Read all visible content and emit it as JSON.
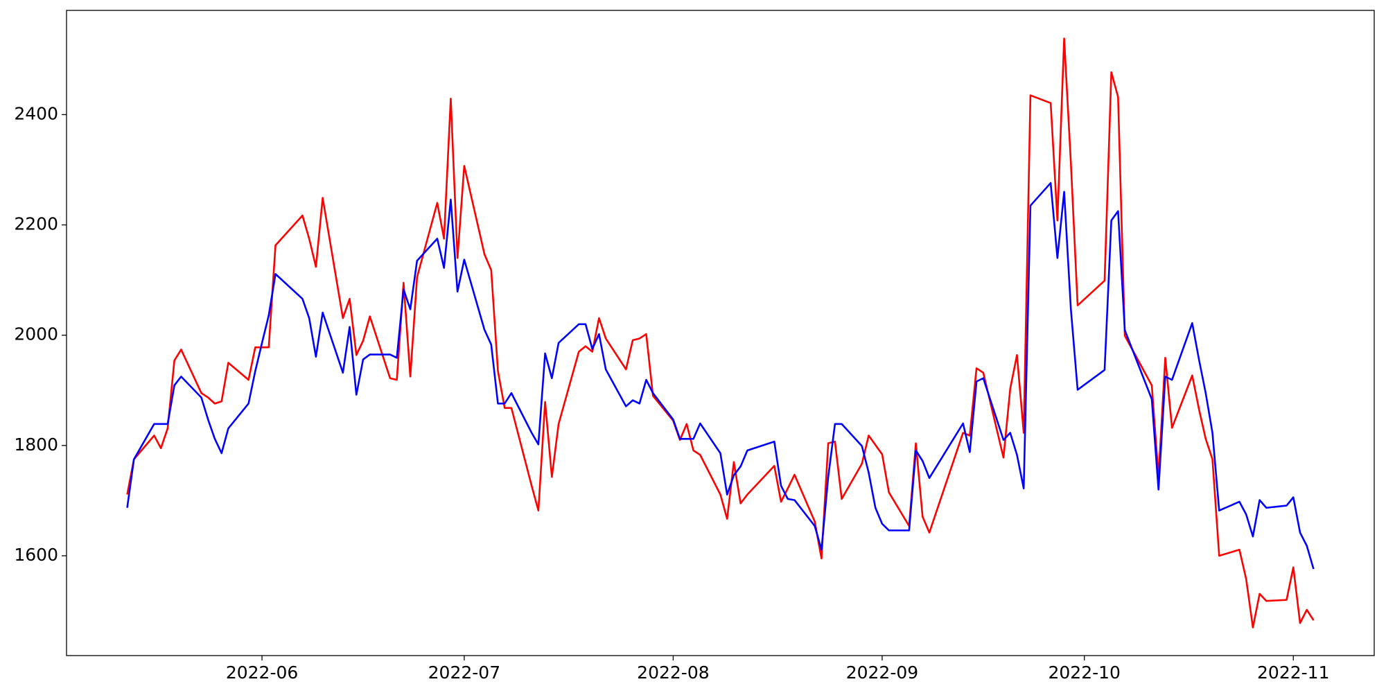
{
  "chart_data": {
    "type": "line",
    "x": [
      "2022-05-12",
      "2022-05-13",
      "2022-05-16",
      "2022-05-17",
      "2022-05-18",
      "2022-05-19",
      "2022-05-20",
      "2022-05-23",
      "2022-05-24",
      "2022-05-25",
      "2022-05-26",
      "2022-05-27",
      "2022-05-30",
      "2022-05-31",
      "2022-06-01",
      "2022-06-02",
      "2022-06-03",
      "2022-06-07",
      "2022-06-08",
      "2022-06-09",
      "2022-06-10",
      "2022-06-13",
      "2022-06-14",
      "2022-06-15",
      "2022-06-16",
      "2022-06-17",
      "2022-06-20",
      "2022-06-21",
      "2022-06-22",
      "2022-06-23",
      "2022-06-24",
      "2022-06-27",
      "2022-06-28",
      "2022-06-29",
      "2022-06-30",
      "2022-07-01",
      "2022-07-04",
      "2022-07-05",
      "2022-07-06",
      "2022-07-07",
      "2022-07-08",
      "2022-07-11",
      "2022-07-12",
      "2022-07-13",
      "2022-07-14",
      "2022-07-15",
      "2022-07-18",
      "2022-07-19",
      "2022-07-20",
      "2022-07-21",
      "2022-07-22",
      "2022-07-25",
      "2022-07-26",
      "2022-07-27",
      "2022-07-28",
      "2022-07-29",
      "2022-08-01",
      "2022-08-02",
      "2022-08-03",
      "2022-08-04",
      "2022-08-05",
      "2022-08-08",
      "2022-08-09",
      "2022-08-10",
      "2022-08-11",
      "2022-08-12",
      "2022-08-16",
      "2022-08-17",
      "2022-08-18",
      "2022-08-19",
      "2022-08-22",
      "2022-08-23",
      "2022-08-24",
      "2022-08-25",
      "2022-08-26",
      "2022-08-29",
      "2022-08-30",
      "2022-08-31",
      "2022-09-01",
      "2022-09-02",
      "2022-09-05",
      "2022-09-06",
      "2022-09-07",
      "2022-09-08",
      "2022-09-13",
      "2022-09-14",
      "2022-09-15",
      "2022-09-16",
      "2022-09-19",
      "2022-09-20",
      "2022-09-21",
      "2022-09-22",
      "2022-09-23",
      "2022-09-26",
      "2022-09-27",
      "2022-09-28",
      "2022-09-29",
      "2022-09-30",
      "2022-10-04",
      "2022-10-05",
      "2022-10-06",
      "2022-10-07",
      "2022-10-11",
      "2022-10-12",
      "2022-10-13",
      "2022-10-14",
      "2022-10-17",
      "2022-10-18",
      "2022-10-19",
      "2022-10-20",
      "2022-10-21",
      "2022-10-24",
      "2022-10-25",
      "2022-10-26",
      "2022-10-27",
      "2022-10-28",
      "2022-10-31",
      "2022-11-01",
      "2022-11-02",
      "2022-11-03",
      "2022-11-04"
    ],
    "series": [
      {
        "color": "#ff0000",
        "values": [
          1711,
          1775,
          1818,
          1795,
          1831,
          1954,
          1974,
          1895,
          1887,
          1876,
          1880,
          1950,
          1919,
          1978,
          1978,
          1978,
          2163,
          2217,
          2175,
          2124,
          2249,
          2031,
          2066,
          1964,
          1990,
          2034,
          1922,
          1919,
          2095,
          1925,
          2105,
          2240,
          2175,
          2429,
          2140,
          2307,
          2147,
          2118,
          1935,
          1868,
          1868,
          1727,
          1682,
          1879,
          1743,
          1839,
          1970,
          1980,
          1970,
          2031,
          1994,
          1938,
          1991,
          1994,
          2002,
          1890,
          1845,
          1810,
          1839,
          1791,
          1783,
          1711,
          1667,
          1770,
          1695,
          1711,
          1763,
          1698,
          1722,
          1747,
          1662,
          1595,
          1804,
          1807,
          1703,
          1767,
          1818,
          1801,
          1784,
          1715,
          1654,
          1804,
          1671,
          1642,
          1823,
          1818,
          1940,
          1932,
          1778,
          1903,
          1964,
          1823,
          2435,
          2421,
          2208,
          2538,
          2312,
          2054,
          2099,
          2477,
          2432,
          1999,
          1909,
          1743,
          1959,
          1832,
          1927,
          1866,
          1812,
          1775,
          1600,
          1611,
          1558,
          1470,
          1531,
          1518,
          1520,
          1579,
          1478,
          1502,
          1483
        ]
      },
      {
        "color": "#0000ff",
        "values": [
          1687,
          1775,
          1839,
          1839,
          1839,
          1909,
          1925,
          1887,
          1847,
          1812,
          1786,
          1831,
          1876,
          1935,
          1986,
          2036,
          2111,
          2066,
          2031,
          1961,
          2041,
          1932,
          2015,
          1892,
          1956,
          1965,
          1965,
          1959,
          2083,
          2047,
          2135,
          2175,
          2122,
          2246,
          2079,
          2137,
          2010,
          1983,
          1876,
          1876,
          1895,
          1823,
          1802,
          1967,
          1922,
          1986,
          2020,
          2020,
          1975,
          2002,
          1938,
          1871,
          1882,
          1876,
          1919,
          1895,
          1847,
          1812,
          1812,
          1812,
          1840,
          1786,
          1711,
          1746,
          1762,
          1791,
          1807,
          1727,
          1703,
          1701,
          1654,
          1611,
          1743,
          1839,
          1839,
          1799,
          1751,
          1687,
          1658,
          1646,
          1646,
          1791,
          1772,
          1741,
          1840,
          1788,
          1916,
          1922,
          1810,
          1823,
          1783,
          1722,
          2235,
          2276,
          2140,
          2260,
          2047,
          1901,
          1937,
          2208,
          2225,
          2009,
          1884,
          1720,
          1925,
          1919,
          2022,
          1956,
          1895,
          1823,
          1682,
          1698,
          1675,
          1635,
          1701,
          1687,
          1691,
          1706,
          1642,
          1618,
          1576
        ]
      }
    ],
    "xlim": [
      "2022-05-03",
      "2022-11-13"
    ],
    "xticks": [
      {
        "value": "2022-06-01",
        "label": "2022-06"
      },
      {
        "value": "2022-07-01",
        "label": "2022-07"
      },
      {
        "value": "2022-08-01",
        "label": "2022-08"
      },
      {
        "value": "2022-09-01",
        "label": "2022-09"
      },
      {
        "value": "2022-10-01",
        "label": "2022-10"
      },
      {
        "value": "2022-11-01",
        "label": "2022-11"
      }
    ],
    "ylim": [
      1419,
      2589
    ],
    "yticks": [
      1600,
      1800,
      2000,
      2200,
      2400
    ],
    "grid": false
  }
}
